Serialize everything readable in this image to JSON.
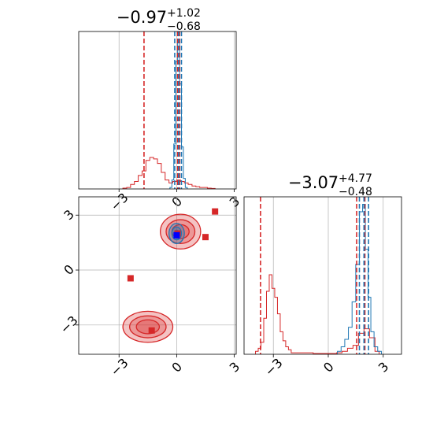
{
  "chart_data": [
    {
      "type": "histogram",
      "panel": "top-left",
      "title": "−0.97",
      "title_upper": "+1.02",
      "title_lower": "−0.68",
      "xlim": [
        -5.1,
        3.1
      ],
      "xticks": [
        -3,
        0,
        3
      ],
      "grid": true,
      "series": [
        {
          "color": "#d62728",
          "bins": [
            -2.7,
            -2.5,
            -2.3,
            -2.1,
            -1.9,
            -1.7,
            -1.5,
            -1.3,
            -1.1,
            -0.9,
            -0.7,
            -0.5,
            -0.3,
            -0.1,
            0.1,
            0.3,
            0.5,
            0.7,
            0.9,
            1.1,
            1.3,
            1.5,
            1.7,
            1.9
          ],
          "counts": [
            0.005,
            0.01,
            0.03,
            0.05,
            0.09,
            0.12,
            0.19,
            0.21,
            0.2,
            0.17,
            0.11,
            0.06,
            0.04,
            0.05,
            0.06,
            0.05,
            0.04,
            0.03,
            0.02,
            0.015,
            0.01,
            0.01,
            0.005,
            0.003
          ],
          "quantile_lines": [
            -1.7,
            0.05,
            0.15
          ]
        },
        {
          "color": "#1f77b4",
          "bins": [
            -0.3,
            -0.2,
            -0.1,
            0.0,
            0.1,
            0.2,
            0.3,
            0.4,
            0.5
          ],
          "counts": [
            0.01,
            0.06,
            0.3,
            0.85,
            1.0,
            0.7,
            0.28,
            0.07,
            0.01
          ],
          "quantile_lines": [
            -0.1,
            0.1,
            0.25
          ]
        }
      ]
    },
    {
      "type": "scatter",
      "panel": "bottom-left",
      "subtype": "2d-density-contour",
      "xlim": [
        -5.1,
        3.1
      ],
      "ylim": [
        -4.6,
        4.0
      ],
      "xticks": [
        -3,
        0,
        3
      ],
      "yticks": [
        -3,
        0,
        3
      ],
      "grid": true,
      "series": [
        {
          "color": "#d62728",
          "contours": [
            {
              "cx": -1.5,
              "cy": -3.1,
              "rx": 1.3,
              "ry": 0.85
            },
            {
              "cx": -1.5,
              "cy": -3.1,
              "rx": 0.95,
              "ry": 0.6
            },
            {
              "cx": -1.5,
              "cy": -3.1,
              "rx": 0.6,
              "ry": 0.38
            },
            {
              "cx": 0.2,
              "cy": 2.1,
              "rx": 1.05,
              "ry": 0.95
            },
            {
              "cx": 0.2,
              "cy": 2.1,
              "rx": 0.75,
              "ry": 0.65
            },
            {
              "cx": 0.2,
              "cy": 2.1,
              "rx": 0.45,
              "ry": 0.38
            }
          ],
          "markers": [
            {
              "x": 2.0,
              "y": 3.2
            },
            {
              "x": 1.5,
              "y": 1.8
            },
            {
              "x": -2.4,
              "y": -0.45
            },
            {
              "x": -1.3,
              "y": -3.3
            },
            {
              "x": 0.05,
              "y": 2.0
            }
          ]
        },
        {
          "color": "#1f77b4",
          "contours": [
            {
              "cx": 0.0,
              "cy": 2.0,
              "rx": 0.4,
              "ry": 0.55
            },
            {
              "cx": 0.0,
              "cy": 2.0,
              "rx": 0.25,
              "ry": 0.35
            },
            {
              "cx": 0.0,
              "cy": 2.0,
              "rx": 0.12,
              "ry": 0.18
            }
          ],
          "markers": [
            {
              "x": 0.0,
              "y": 1.9
            }
          ]
        }
      ]
    },
    {
      "type": "histogram",
      "panel": "bottom-right",
      "title": "−3.07",
      "title_upper": "+4.77",
      "title_lower": "−0.48",
      "xlim": [
        -4.6,
        4.0
      ],
      "xticks": [
        -3,
        0,
        3
      ],
      "grid": true,
      "series": [
        {
          "color": "#d62728",
          "bins": [
            -3.9,
            -3.75,
            -3.6,
            -3.45,
            -3.3,
            -3.15,
            -3.0,
            -2.85,
            -2.7,
            -2.55,
            -2.4,
            -2.25,
            -2.1,
            -1.95,
            0.3,
            0.6,
            0.9,
            1.2,
            1.5,
            1.8,
            2.1,
            2.4,
            2.7
          ],
          "counts": [
            0.02,
            0.04,
            0.08,
            0.24,
            0.42,
            0.53,
            0.44,
            0.38,
            0.27,
            0.15,
            0.09,
            0.05,
            0.03,
            0.01,
            0.005,
            0.01,
            0.02,
            0.04,
            0.06,
            0.14,
            0.17,
            0.11,
            0.02
          ],
          "quantile_lines": [
            -3.7,
            1.55,
            2.0
          ]
        },
        {
          "color": "#1f77b4",
          "bins": [
            0.6,
            0.8,
            1.0,
            1.2,
            1.4,
            1.6,
            1.8,
            1.95,
            2.1,
            2.25,
            2.4,
            2.6,
            2.8
          ],
          "counts": [
            0.02,
            0.05,
            0.1,
            0.18,
            0.35,
            0.6,
            0.95,
            1.0,
            0.7,
            0.38,
            0.15,
            0.05,
            0.02
          ],
          "quantile_lines": [
            1.7,
            1.95,
            2.2
          ]
        }
      ]
    }
  ],
  "colors": {
    "red": "#d62728",
    "blue": "#1f77b4",
    "grid": "#b0b0b0",
    "axis": "#000000"
  }
}
